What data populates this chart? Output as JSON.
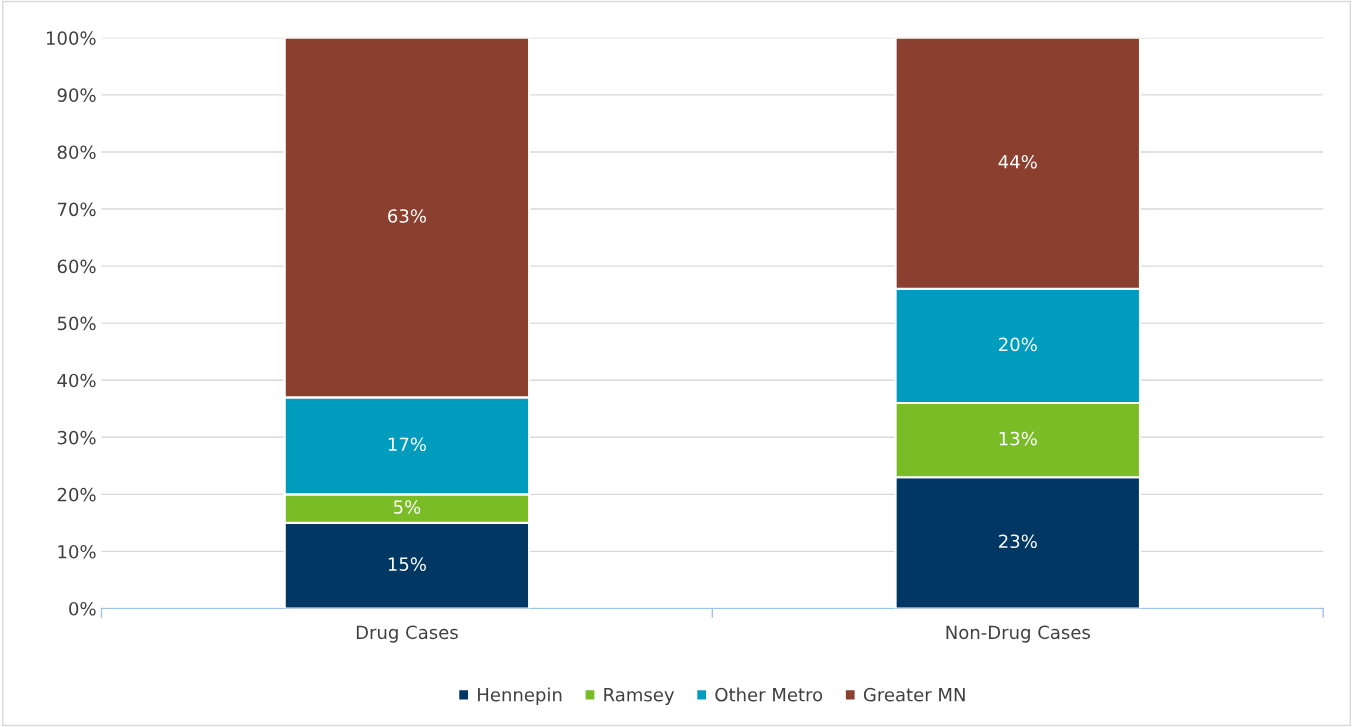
{
  "chart_data": {
    "type": "bar",
    "stacked": true,
    "categories": [
      "Drug Cases",
      "Non-Drug Cases"
    ],
    "series": [
      {
        "name": "Hennepin",
        "color": "#003763",
        "values": [
          15,
          23
        ],
        "value_labels": [
          "15%",
          "23%"
        ]
      },
      {
        "name": "Ramsey",
        "color": "#7abc26",
        "values": [
          5,
          13
        ],
        "value_labels": [
          "5%",
          "13%"
        ]
      },
      {
        "name": "Other Metro",
        "color": "#009cbd",
        "values": [
          17,
          20
        ],
        "value_labels": [
          "17%",
          "20%"
        ]
      },
      {
        "name": "Greater MN",
        "color": "#8b3f2f",
        "values": [
          63,
          44
        ],
        "value_labels": [
          "63%",
          "44%"
        ]
      }
    ],
    "ylim": [
      0,
      100
    ],
    "yticks": [
      {
        "value": 0,
        "label": "0%"
      },
      {
        "value": 10,
        "label": "10%"
      },
      {
        "value": 20,
        "label": "20%"
      },
      {
        "value": 30,
        "label": "30%"
      },
      {
        "value": 40,
        "label": "40%"
      },
      {
        "value": 50,
        "label": "50%"
      },
      {
        "value": 60,
        "label": "60%"
      },
      {
        "value": 70,
        "label": "70%"
      },
      {
        "value": 80,
        "label": "80%"
      },
      {
        "value": 90,
        "label": "90%"
      },
      {
        "value": 100,
        "label": "100%"
      }
    ],
    "grid": "y",
    "legend": "bottom"
  }
}
